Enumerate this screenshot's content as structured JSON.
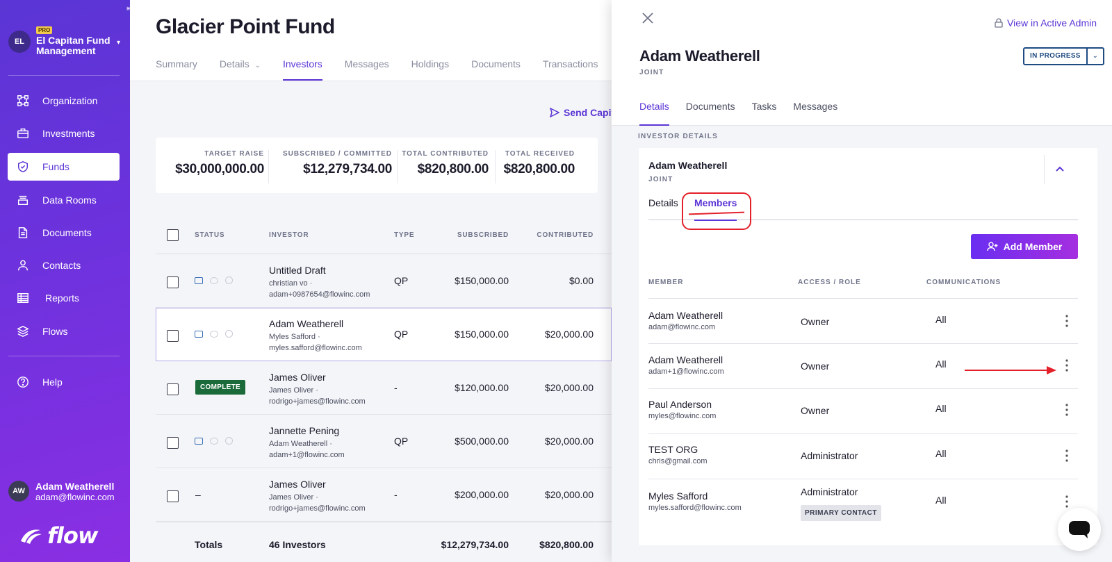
{
  "sidebar": {
    "collapse_glyph": "⇤",
    "org": {
      "initials": "EL",
      "badge": "PRO",
      "name": "El Capitan Fund Management"
    },
    "items": [
      {
        "label": "Organization",
        "icon": "organization-icon"
      },
      {
        "label": "Investments",
        "icon": "briefcase-icon"
      },
      {
        "label": "Funds",
        "icon": "shield-icon",
        "active": true
      },
      {
        "label": "Data Rooms",
        "icon": "data-room-icon"
      },
      {
        "label": "Documents",
        "icon": "document-icon"
      },
      {
        "label": "Contacts",
        "icon": "person-icon"
      },
      {
        "label": "Reports",
        "icon": "table-icon"
      },
      {
        "label": "Flows",
        "icon": "layers-icon"
      },
      {
        "label": "Help",
        "icon": "help-icon"
      }
    ],
    "user": {
      "initials": "AW",
      "name": "Adam Weatherell",
      "email": "adam@flowinc.com"
    },
    "logo_text": "flow"
  },
  "main": {
    "title": "Glacier Point Fund",
    "tabs": [
      "Summary",
      "Details",
      "Investors",
      "Messages",
      "Holdings",
      "Documents",
      "Transactions"
    ],
    "active_tab": "Investors",
    "send_capital_label": "Send Capit",
    "stats": [
      {
        "label": "TARGET RAISE",
        "value": "$30,000,000.00"
      },
      {
        "label": "SUBSCRIBED / COMMITTED",
        "value": "$12,279,734.00"
      },
      {
        "label": "TOTAL CONTRIBUTED",
        "value": "$820,800.00"
      },
      {
        "label": "TOTAL RECEIVED",
        "value": "$820,800.00"
      }
    ],
    "table": {
      "headers": {
        "status": "STATUS",
        "investor": "INVESTOR",
        "type": "TYPE",
        "subscribed": "SUBSCRIBED",
        "contributed": "CONTRIBUTED"
      },
      "rows": [
        {
          "name": "Untitled Draft",
          "contact": "christian vo ·",
          "email": "adam+0987654@flowinc.com",
          "type": "QP",
          "subscribed": "$150,000.00",
          "contributed": "$0.00",
          "status": "icons"
        },
        {
          "name": "Adam Weatherell",
          "contact": "Myles Safford ·",
          "email": "myles.safford@flowinc.com",
          "type": "QP",
          "subscribed": "$150,000.00",
          "contributed": "$20,000.00",
          "status": "icons",
          "selected": true
        },
        {
          "name": "James Oliver",
          "contact": "James Oliver ·",
          "email": "rodrigo+james@flowinc.com",
          "type": "-",
          "subscribed": "$120,000.00",
          "contributed": "$20,000.00",
          "status": "COMPLETE"
        },
        {
          "name": "Jannette Pening",
          "contact": "Adam Weatherell ·",
          "email": "adam+1@flowinc.com",
          "type": "QP",
          "subscribed": "$500,000.00",
          "contributed": "$20,000.00",
          "status": "icons"
        },
        {
          "name": "James Oliver",
          "contact": "James Oliver ·",
          "email": "rodrigo+james@flowinc.com",
          "type": "-",
          "subscribed": "$200,000.00",
          "contributed": "$20,000.00",
          "status": "–"
        }
      ],
      "totals": {
        "label": "Totals",
        "investors": "46 Investors",
        "subscribed": "$12,279,734.00",
        "contributed": "$820,800.00"
      }
    }
  },
  "drawer": {
    "admin_link": "View in Active Admin",
    "name": "Adam Weatherell",
    "subtype": "JOINT",
    "status": "IN PROGRESS",
    "tabs": [
      "Details",
      "Documents",
      "Tasks",
      "Messages"
    ],
    "active_tab": "Details",
    "section_label": "INVESTOR DETAILS",
    "card": {
      "name": "Adam Weatherell",
      "subtype": "JOINT",
      "tabs": [
        "Details",
        "Members"
      ],
      "active_tab": "Members",
      "add_member_label": "Add Member",
      "headers": {
        "member": "MEMBER",
        "role": "ACCESS / ROLE",
        "comms": "COMMUNICATIONS"
      },
      "members": [
        {
          "name": "Adam Weatherell",
          "email": "adam@flowinc.com",
          "role": "Owner",
          "comms": "All"
        },
        {
          "name": "Adam Weatherell",
          "email": "adam+1@flowinc.com",
          "role": "Owner",
          "comms": "All"
        },
        {
          "name": "Paul Anderson",
          "email": "myles@flowinc.com",
          "role": "Owner",
          "comms": "All"
        },
        {
          "name": "TEST ORG",
          "email": "chris@gmail.com",
          "role": "Administrator",
          "comms": "All"
        },
        {
          "name": "Myles Safford",
          "email": "myles.safford@flowinc.com",
          "role": "Administrator",
          "comms": "All",
          "badge": "PRIMARY CONTACT"
        }
      ]
    }
  },
  "colors": {
    "accent": "#5b35d5",
    "complete": "#1b6b3a",
    "annotation": "#e4202a",
    "status_border": "#1e4b82"
  }
}
